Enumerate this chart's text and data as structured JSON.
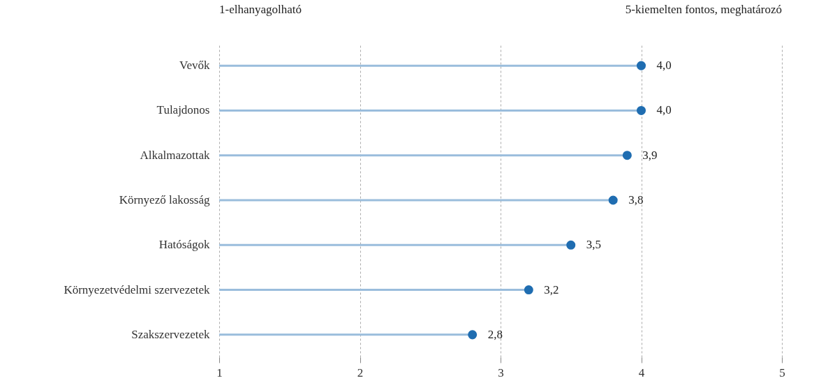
{
  "chart_data": {
    "type": "lollipop",
    "orientation": "horizontal",
    "categories": [
      "Vevők",
      "Tulajdonos",
      "Alkalmazottak",
      "Környező lakosság",
      "Hatóságok",
      "Környezetvédelmi szervezetek",
      "Szakszervezetek"
    ],
    "series": [
      {
        "color": "#1f6db1",
        "values": [
          4.0,
          4.0,
          3.9,
          3.8,
          3.5,
          3.2,
          2.8
        ],
        "value_labels": [
          "4,0",
          "4,0",
          "3,9",
          "3,8",
          "3,5",
          "3,2",
          "2,8"
        ]
      }
    ],
    "xlim": [
      1,
      5
    ],
    "xticks": [
      1,
      2,
      3,
      4,
      5
    ],
    "grid": "x",
    "annotations": [
      "1-elhanyagolható",
      "5-kiemelten fontos, meghatározó"
    ]
  }
}
